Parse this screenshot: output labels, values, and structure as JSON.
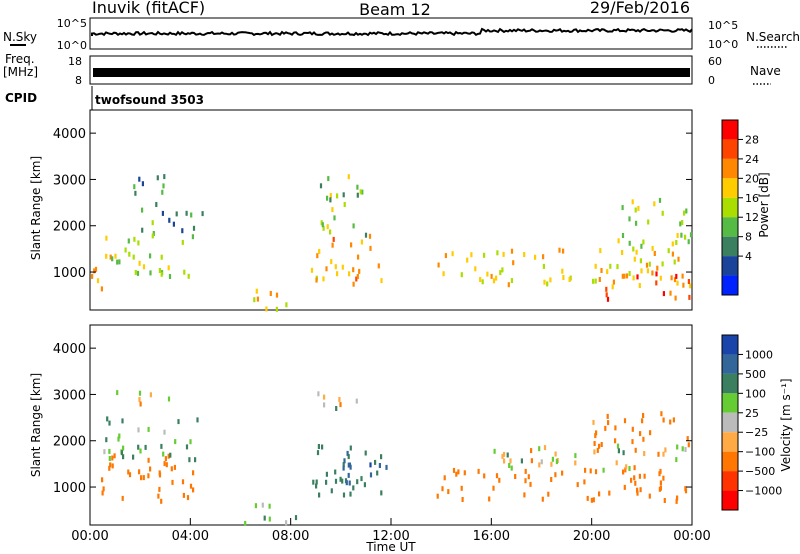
{
  "header": {
    "station": "Inuvik (fitACF)",
    "beam": "Beam 12",
    "date": "29/Feb/2016"
  },
  "top_panels": {
    "nsky_label": "N.Sky",
    "nsearch_label": "N.Search",
    "freq_label": "Freq.",
    "freq_unit": "[MHz]",
    "nave_label": "Nave",
    "cpid_label": "CPID",
    "cpid_text": "twofsound 3503",
    "noise_ticks_left": [
      "10^5",
      "10^0"
    ],
    "noise_ticks_right": [
      "10^5",
      "10^0"
    ],
    "freq_ticks": [
      "18",
      "8"
    ],
    "nave_ticks": [
      "60",
      "0"
    ]
  },
  "chart_data": [
    {
      "type": "heatmap",
      "name": "power",
      "ylabel": "Slant Range [km]",
      "yticks": [
        "1000",
        "2000",
        "3000",
        "4000"
      ],
      "ylim": [
        180,
        4500
      ],
      "xlim": [
        0,
        24
      ],
      "colorbar": {
        "label": "Power [dB]",
        "ticks": [
          "28",
          "24",
          "20",
          "16",
          "12",
          "8",
          "4"
        ],
        "colors": [
          "#ff0000",
          "#ff4400",
          "#ff8800",
          "#ffcc00",
          "#aadd00",
          "#55bb44",
          "#3a8060",
          "#1a4499",
          "#0022ff"
        ]
      },
      "echo_regions": [
        {
          "t0": 0.0,
          "t1": 0.8,
          "r0": 600,
          "r1": 1500,
          "v": 24
        },
        {
          "t0": 0.6,
          "t1": 4.2,
          "r0": 900,
          "r1": 1900,
          "v": 16
        },
        {
          "t0": 1.0,
          "t1": 3.4,
          "r0": 2700,
          "r1": 3100,
          "v": 9
        },
        {
          "t0": 2.0,
          "t1": 4.5,
          "r0": 1900,
          "r1": 2500,
          "v": 10
        },
        {
          "t0": 6.0,
          "t1": 8.0,
          "r0": 200,
          "r1": 650,
          "v": 20
        },
        {
          "t0": 8.8,
          "t1": 11.6,
          "r0": 700,
          "r1": 1800,
          "v": 22
        },
        {
          "t0": 9.0,
          "t1": 11.0,
          "r0": 1800,
          "r1": 3100,
          "v": 14
        },
        {
          "t0": 13.8,
          "t1": 24.0,
          "r0": 700,
          "r1": 1500,
          "v": 20
        },
        {
          "t0": 20.5,
          "t1": 24.0,
          "r0": 400,
          "r1": 1100,
          "v": 26
        },
        {
          "t0": 21.0,
          "t1": 24.0,
          "r0": 1500,
          "r1": 2600,
          "v": 16
        }
      ]
    },
    {
      "type": "heatmap",
      "name": "velocity",
      "ylabel": "Slant Range [km]",
      "xlabel": "Time UT",
      "xticks": [
        "00:00",
        "04:00",
        "08:00",
        "12:00",
        "16:00",
        "20:00",
        "00:00"
      ],
      "yticks": [
        "1000",
        "2000",
        "3000",
        "4000"
      ],
      "ylim": [
        180,
        4500
      ],
      "xlim": [
        0,
        24
      ],
      "colorbar": {
        "label": "Velocity [m s⁻¹]",
        "ticks": [
          "1000",
          "500",
          "100",
          "25",
          "−25",
          "−100",
          "−500",
          "−1000"
        ],
        "colors": [
          "#1a44aa",
          "#336699",
          "#3a8060",
          "#66cc33",
          "#bbbbbb",
          "#ffaa44",
          "#ff7700",
          "#ff3300",
          "#ff0000"
        ]
      },
      "echo_regions": [
        {
          "t0": 0.0,
          "t1": 4.2,
          "r0": 700,
          "r1": 1700,
          "v": -300
        },
        {
          "t0": 0.5,
          "t1": 4.5,
          "r0": 1600,
          "r1": 2500,
          "v": 120
        },
        {
          "t0": 1.0,
          "t1": 3.2,
          "r0": 2800,
          "r1": 3100,
          "v": 0
        },
        {
          "t0": 6.0,
          "t1": 8.2,
          "r0": 200,
          "r1": 650,
          "v": 120
        },
        {
          "t0": 8.6,
          "t1": 11.6,
          "r0": 700,
          "r1": 1900,
          "v": 400
        },
        {
          "t0": 10.0,
          "t1": 11.8,
          "r0": 1000,
          "r1": 1800,
          "v": 900
        },
        {
          "t0": 9.0,
          "t1": 11.0,
          "r0": 2700,
          "r1": 3100,
          "v": 0
        },
        {
          "t0": 13.8,
          "t1": 24.0,
          "r0": 700,
          "r1": 1400,
          "v": -300
        },
        {
          "t0": 16.0,
          "t1": 24.0,
          "r0": 1300,
          "r1": 1900,
          "v": 0
        },
        {
          "t0": 20.0,
          "t1": 24.0,
          "r0": 1800,
          "r1": 2600,
          "v": -200
        }
      ]
    }
  ]
}
